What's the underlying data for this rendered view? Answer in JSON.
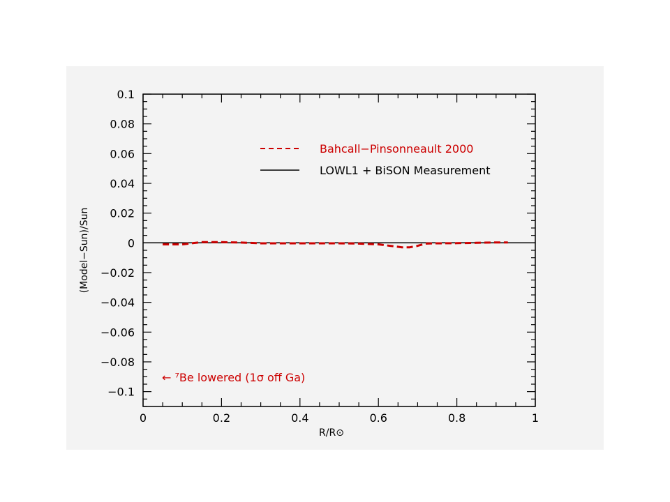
{
  "chart_data": {
    "type": "line",
    "title": "",
    "xlabel": "R/R⊙",
    "ylabel": "(Model−Sun)/Sun",
    "xlim": [
      0,
      1
    ],
    "ylim": [
      -0.11,
      0.1
    ],
    "x_ticks": [
      0,
      0.2,
      0.4,
      0.6,
      0.8,
      1
    ],
    "x_tick_labels": [
      "0",
      "0.2",
      "0.4",
      "0.6",
      "0.8",
      "1"
    ],
    "y_ticks": [
      0.1,
      0.08,
      0.06,
      0.04,
      0.02,
      0,
      -0.02,
      -0.04,
      -0.06,
      -0.08,
      -0.1
    ],
    "y_tick_labels": [
      "0.1",
      "0.08",
      "0.06",
      "0.04",
      "0.02",
      "0",
      "−0.02",
      "−0.04",
      "−0.06",
      "−0.08",
      "−0.1"
    ],
    "grid": false,
    "legend_position": "top-right",
    "series": [
      {
        "name": "Bahcall−Pinsonneault 2000",
        "style": "dashed",
        "color": "#cc0000",
        "x": [
          0.05,
          0.1,
          0.15,
          0.2,
          0.25,
          0.3,
          0.4,
          0.5,
          0.55,
          0.6,
          0.63,
          0.66,
          0.68,
          0.7,
          0.72,
          0.75,
          0.8,
          0.85,
          0.9,
          0.93
        ],
        "y": [
          -0.001,
          -0.001,
          0.0005,
          0.0005,
          0.0002,
          -0.0003,
          -0.0003,
          -0.0003,
          -0.0005,
          -0.001,
          -0.002,
          -0.003,
          -0.003,
          -0.002,
          -0.0005,
          -0.0003,
          -0.0002,
          0.0,
          0.0003,
          0.0003
        ]
      },
      {
        "name": "LOWL1 + BiSON Measurement",
        "style": "solid",
        "color": "#000000",
        "x": [
          0,
          1
        ],
        "y": [
          0,
          0
        ]
      }
    ],
    "annotation": {
      "text": "← ⁷Be lowered (1σ off Ga)",
      "color": "#cc0000"
    }
  }
}
